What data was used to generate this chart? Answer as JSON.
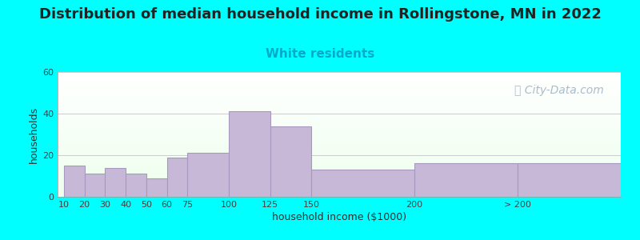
{
  "title": "Distribution of median household income in Rollingstone, MN in 2022",
  "subtitle": "White residents",
  "xlabel": "household income ($1000)",
  "ylabel": "households",
  "background_outer": "#00FFFF",
  "bar_color": "#C8B8D8",
  "bar_edge_color": "#A898C0",
  "plot_bg_color_top": "#e8f5e8",
  "plot_bg_color_bottom": "#ffffff",
  "tick_labels": [
    "10",
    "20",
    "30",
    "40",
    "50",
    "60",
    "75",
    "100",
    "125",
    "150",
    "200",
    "> 200"
  ],
  "values": [
    15,
    11,
    14,
    11,
    9,
    19,
    21,
    41,
    34,
    13,
    16,
    16
  ],
  "bar_lefts": [
    0,
    1,
    2,
    3,
    4,
    5,
    6,
    8,
    10,
    12,
    17,
    22
  ],
  "bar_widths": [
    1,
    1,
    1,
    1,
    1,
    1,
    2,
    2,
    2,
    5,
    5,
    5
  ],
  "tick_positions": [
    0,
    1,
    2,
    3,
    4,
    5,
    6,
    8,
    10,
    12,
    17,
    22
  ],
  "xlim_left": -0.3,
  "xlim_right": 27,
  "ylim": [
    0,
    60
  ],
  "yticks": [
    0,
    20,
    40,
    60
  ],
  "title_fontsize": 13,
  "subtitle_fontsize": 11,
  "subtitle_color": "#00AACC",
  "axis_label_fontsize": 9,
  "tick_fontsize": 8,
  "watermark_text": "ⓘ City-Data.com",
  "watermark_color": "#aabccc",
  "watermark_fontsize": 10
}
